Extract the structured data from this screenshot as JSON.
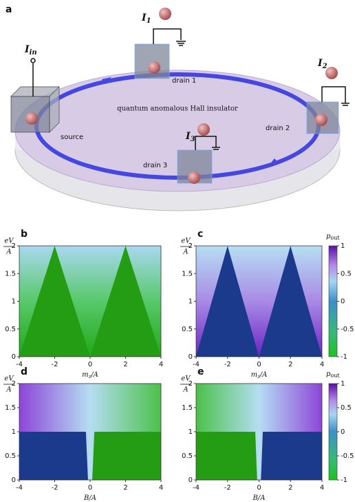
{
  "panel_a": {
    "label": "a",
    "title": "quantum anomalous Hall insulator",
    "source": "source",
    "drains": [
      "drain 1",
      "drain 2",
      "drain 3"
    ],
    "currents": [
      {
        "main": "I",
        "sub": "in"
      },
      {
        "main": "I",
        "sub": "1"
      },
      {
        "main": "I",
        "sub": "2"
      },
      {
        "main": "I",
        "sub": "3"
      }
    ]
  },
  "chart_data": [
    {
      "type": "heatmap",
      "panel_label": "b",
      "xlabel": {
        "main": "m",
        "sub": "z",
        "rest": "/A"
      },
      "ylabel": {
        "numerator": "eV",
        "denominator": "A"
      },
      "xlim": [
        -4,
        4
      ],
      "ylim": [
        0,
        2
      ],
      "xticks": [
        -4,
        -2,
        0,
        2,
        4
      ],
      "yticks": [
        0,
        0.5,
        1,
        1.5,
        2
      ]
    },
    {
      "type": "heatmap",
      "panel_label": "c",
      "xlabel": {
        "main": "m",
        "sub": "z",
        "rest": "/A"
      },
      "ylabel": {
        "numerator": "eV",
        "denominator": "A"
      },
      "xlim": [
        -4,
        4
      ],
      "ylim": [
        0,
        2
      ],
      "xticks": [
        -4,
        -2,
        0,
        2,
        4
      ],
      "yticks": [
        0,
        0.5,
        1,
        1.5,
        2
      ],
      "colorbar": {
        "label": {
          "main": "p",
          "sub": "out"
        },
        "lim": [
          -1,
          1
        ],
        "ticks": [
          -1,
          -0.5,
          0,
          0.5,
          1
        ]
      }
    },
    {
      "type": "heatmap",
      "panel_label": "d",
      "xlabel": {
        "main": "B/A"
      },
      "ylabel": {
        "numerator": "eV",
        "denominator": "A"
      },
      "xlim": [
        -4,
        4
      ],
      "ylim": [
        0,
        2
      ],
      "xticks": [
        -4,
        -2,
        0,
        2,
        4
      ],
      "yticks": [
        0,
        0.5,
        1,
        1.5,
        2
      ]
    },
    {
      "type": "heatmap",
      "panel_label": "e",
      "xlabel": {
        "main": "B/A"
      },
      "ylabel": {
        "numerator": "eV",
        "denominator": "A"
      },
      "xlim": [
        -4,
        4
      ],
      "ylim": [
        0,
        2
      ],
      "xticks": [
        -4,
        -2,
        0,
        2,
        4
      ],
      "yticks": [
        0,
        0.5,
        1,
        1.5,
        2
      ],
      "colorbar": {
        "label": {
          "main": "p",
          "sub": "out"
        },
        "lim": [
          -1,
          1
        ],
        "ticks": [
          -1,
          -0.5,
          0,
          0.5,
          1
        ]
      }
    }
  ]
}
